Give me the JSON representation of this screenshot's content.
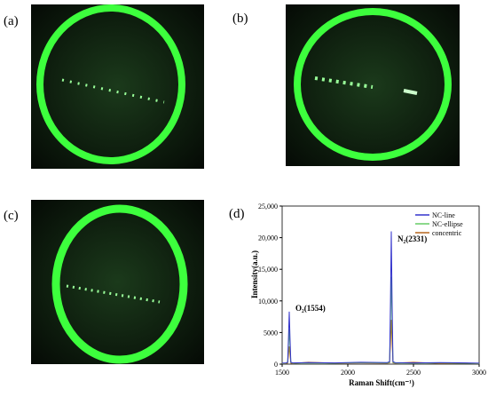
{
  "panels": [
    "(a)",
    "(b)",
    "(c)",
    "(d)"
  ],
  "chart_data": {
    "type": "line",
    "x_label": "Raman Shift(cm⁻¹)",
    "y_label": "Intensity(a.u.)",
    "annotations": [
      "O₂(1554)",
      "N₂(2331)"
    ],
    "x": [
      1500,
      1530,
      1542,
      1548,
      1554,
      1560,
      1566,
      1580,
      1700,
      1900,
      2100,
      2300,
      2318,
      2325,
      2331,
      2337,
      2344,
      2360,
      2500,
      2700,
      2900,
      3000
    ],
    "series": [
      {
        "name": "NC-line",
        "color": "#3333cc",
        "values": [
          150,
          200,
          300,
          4000,
          8300,
          4000,
          300,
          200,
          250,
          200,
          300,
          250,
          400,
          10000,
          21000,
          10000,
          400,
          250,
          200,
          250,
          200,
          150
        ]
      },
      {
        "name": "NC-ellipse",
        "color": "#66cc66",
        "values": [
          100,
          150,
          250,
          2700,
          5500,
          2700,
          250,
          150,
          200,
          150,
          250,
          200,
          300,
          6800,
          13800,
          6800,
          300,
          200,
          150,
          200,
          150,
          100
        ]
      },
      {
        "name": "concentric",
        "color": "#b5651d",
        "values": [
          80,
          100,
          150,
          1400,
          2800,
          1400,
          150,
          100,
          300,
          150,
          200,
          150,
          200,
          3500,
          7000,
          3500,
          200,
          150,
          300,
          100,
          150,
          80
        ]
      }
    ],
    "xlim": [
      1500,
      3000
    ],
    "xticks": [
      1500,
      2000,
      2500,
      3000
    ],
    "ylim": [
      0,
      25000
    ],
    "yticks": [
      0,
      5000,
      {
        "value": 10000,
        "label": "10,000"
      },
      {
        "value": 15000,
        "label": "15,000"
      },
      {
        "value": 20000,
        "label": "20,000"
      },
      {
        "value": 25000,
        "label": "25,000"
      }
    ],
    "legend": "top-right"
  }
}
